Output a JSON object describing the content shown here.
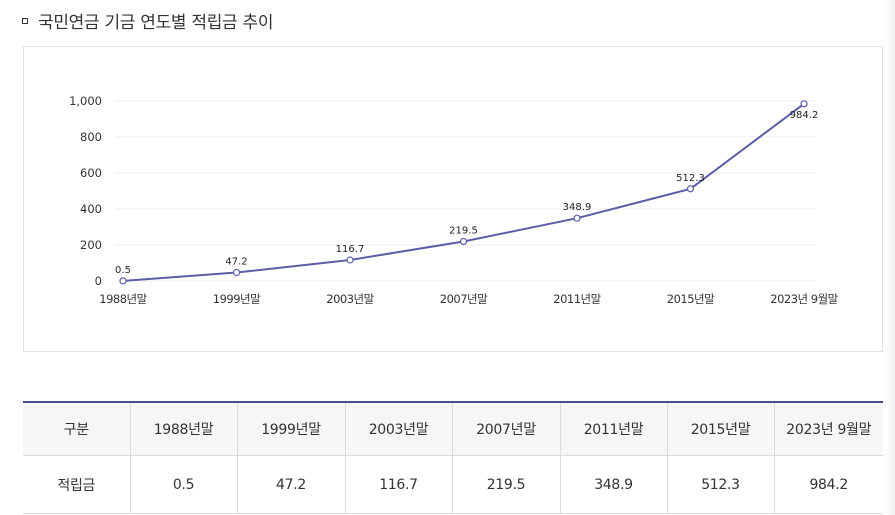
{
  "page": {
    "title": "국민연금 기금 연도별 적립금 추이"
  },
  "chart_data": {
    "type": "line",
    "categories": [
      "1988년말",
      "1999년말",
      "2003년말",
      "2007년말",
      "2011년말",
      "2015년말",
      "2023년 9월말"
    ],
    "series": [
      {
        "values": [
          0.5,
          47.2,
          116.7,
          219.5,
          348.9,
          512.3,
          984.2
        ]
      }
    ],
    "data_labels": [
      "0.5",
      "47.2",
      "116.7",
      "219.5",
      "348.9",
      "512.3",
      "984.2"
    ],
    "yticks": [
      0,
      200,
      400,
      600,
      800,
      1000
    ],
    "ytick_labels": [
      "0",
      "200",
      "400",
      "600",
      "800",
      "1,000"
    ],
    "ylim": [
      0,
      1000
    ],
    "grid": true,
    "legend": "none",
    "colors": {
      "line": "#5b5ea6",
      "marker_fill": "#ffffff",
      "grid": "#ececec"
    }
  },
  "table": {
    "header": [
      "구분",
      "1988년말",
      "1999년말",
      "2003년말",
      "2007년말",
      "2011년말",
      "2015년말",
      "2023년 9월말"
    ],
    "rows": [
      [
        "적립금",
        "0.5",
        "47.2",
        "116.7",
        "219.5",
        "348.9",
        "512.3",
        "984.2"
      ]
    ]
  }
}
